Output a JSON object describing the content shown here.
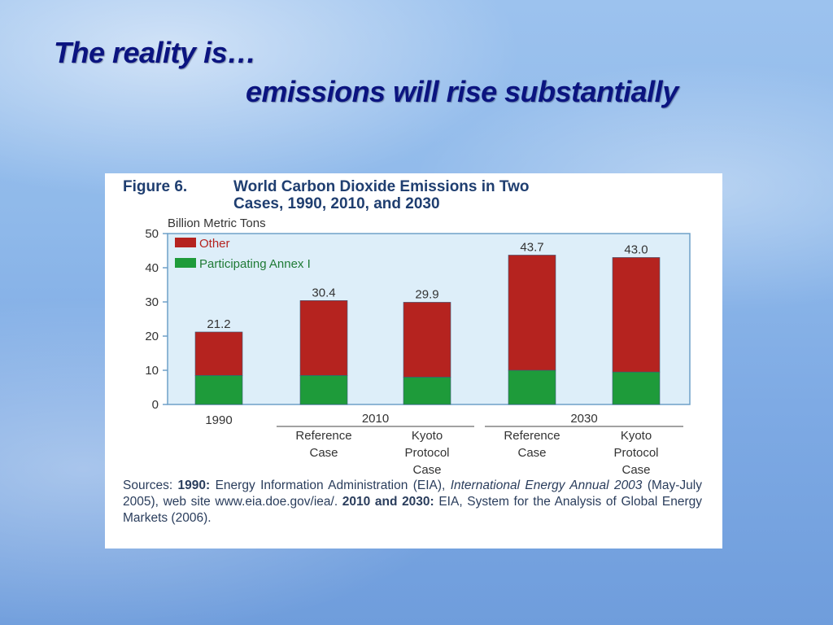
{
  "slide": {
    "title_line1": "The reality is…",
    "title_line2": "emissions will rise substantially"
  },
  "figure": {
    "label": "Figure 6.",
    "title_line1": "World Carbon Dioxide Emissions in Two",
    "title_line2": "Cases, 1990, 2010, and 2030",
    "sources": {
      "prefix": "Sources: ",
      "y1990": "1990:",
      "t1": " Energy Information Administration (EIA), ",
      "pub": "International Energy Annual 2003",
      "t2": " (May-July 2005), web site www.eia.doe.gov/iea/. ",
      "y2010": "2010 and 2030:",
      "t3": " EIA, System for the Analysis of Global Energy Markets (2006)."
    }
  },
  "chart_data": {
    "type": "bar",
    "stacked": true,
    "ylabel": "Billion Metric Tons",
    "ylim": [
      0,
      50
    ],
    "yticks": [
      0,
      10,
      20,
      30,
      40,
      50
    ],
    "legend_position": "top-left",
    "categories": [
      [
        "1990"
      ],
      [
        "Reference",
        "Case"
      ],
      [
        "Kyoto",
        "Protocol",
        "Case"
      ],
      [
        "Reference",
        "Case"
      ],
      [
        "Kyoto",
        "Protocol",
        "Case"
      ]
    ],
    "groups": [
      {
        "label": "2010",
        "members": [
          1,
          2
        ]
      },
      {
        "label": "2030",
        "members": [
          3,
          4
        ]
      }
    ],
    "series": [
      {
        "name": "Participating Annex I",
        "color": "#1e9b3a",
        "values": [
          8.5,
          8.5,
          8.0,
          10.0,
          9.5
        ]
      },
      {
        "name": "Other",
        "color": "#b5231f",
        "values": [
          12.7,
          21.9,
          21.9,
          33.7,
          33.5
        ]
      }
    ],
    "totals": [
      21.2,
      30.4,
      29.9,
      43.7,
      43.0
    ],
    "total_labels": [
      "21.2",
      "30.4",
      "29.9",
      "43.7",
      "43.0"
    ],
    "plot_bg": "#ddeef9",
    "axis_color": "#6fa0c8"
  }
}
